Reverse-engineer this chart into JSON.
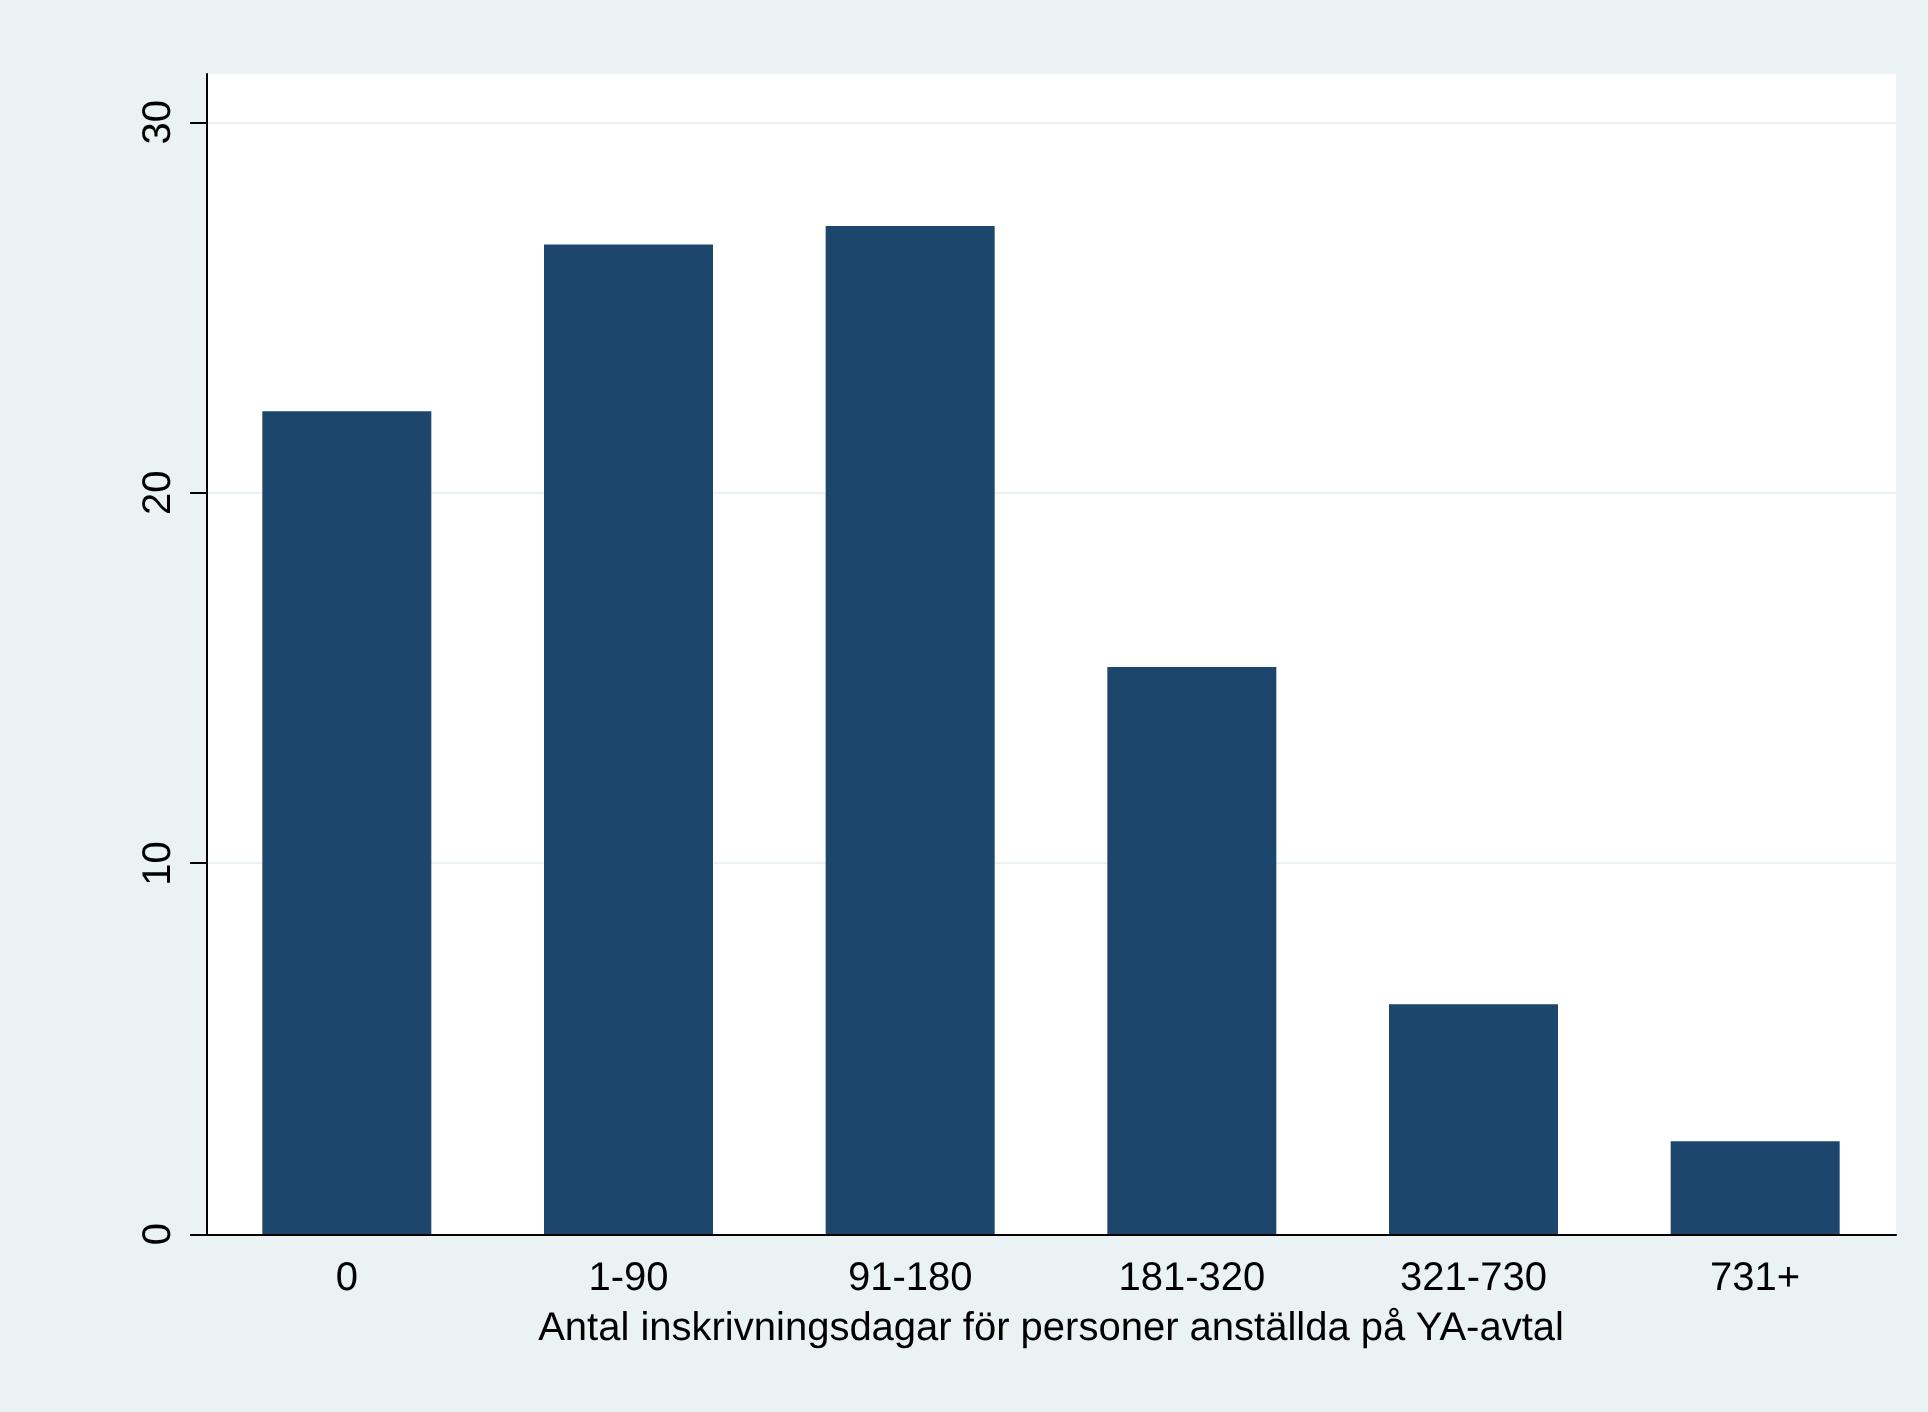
{
  "chart_data": {
    "type": "bar",
    "xlabel": "Antal inskrivningsdagar för personer anställda på YA-avtal",
    "categories": [
      "0",
      "1-90",
      "91-180",
      "181-320",
      "321-730",
      "731+"
    ],
    "values": [
      22.2,
      26.7,
      27.2,
      15.3,
      6.2,
      2.5
    ],
    "color": "#1c466b",
    "ylim": [
      0,
      31.3
    ],
    "yticks": [
      0,
      10,
      20,
      30
    ],
    "grid": "y"
  }
}
